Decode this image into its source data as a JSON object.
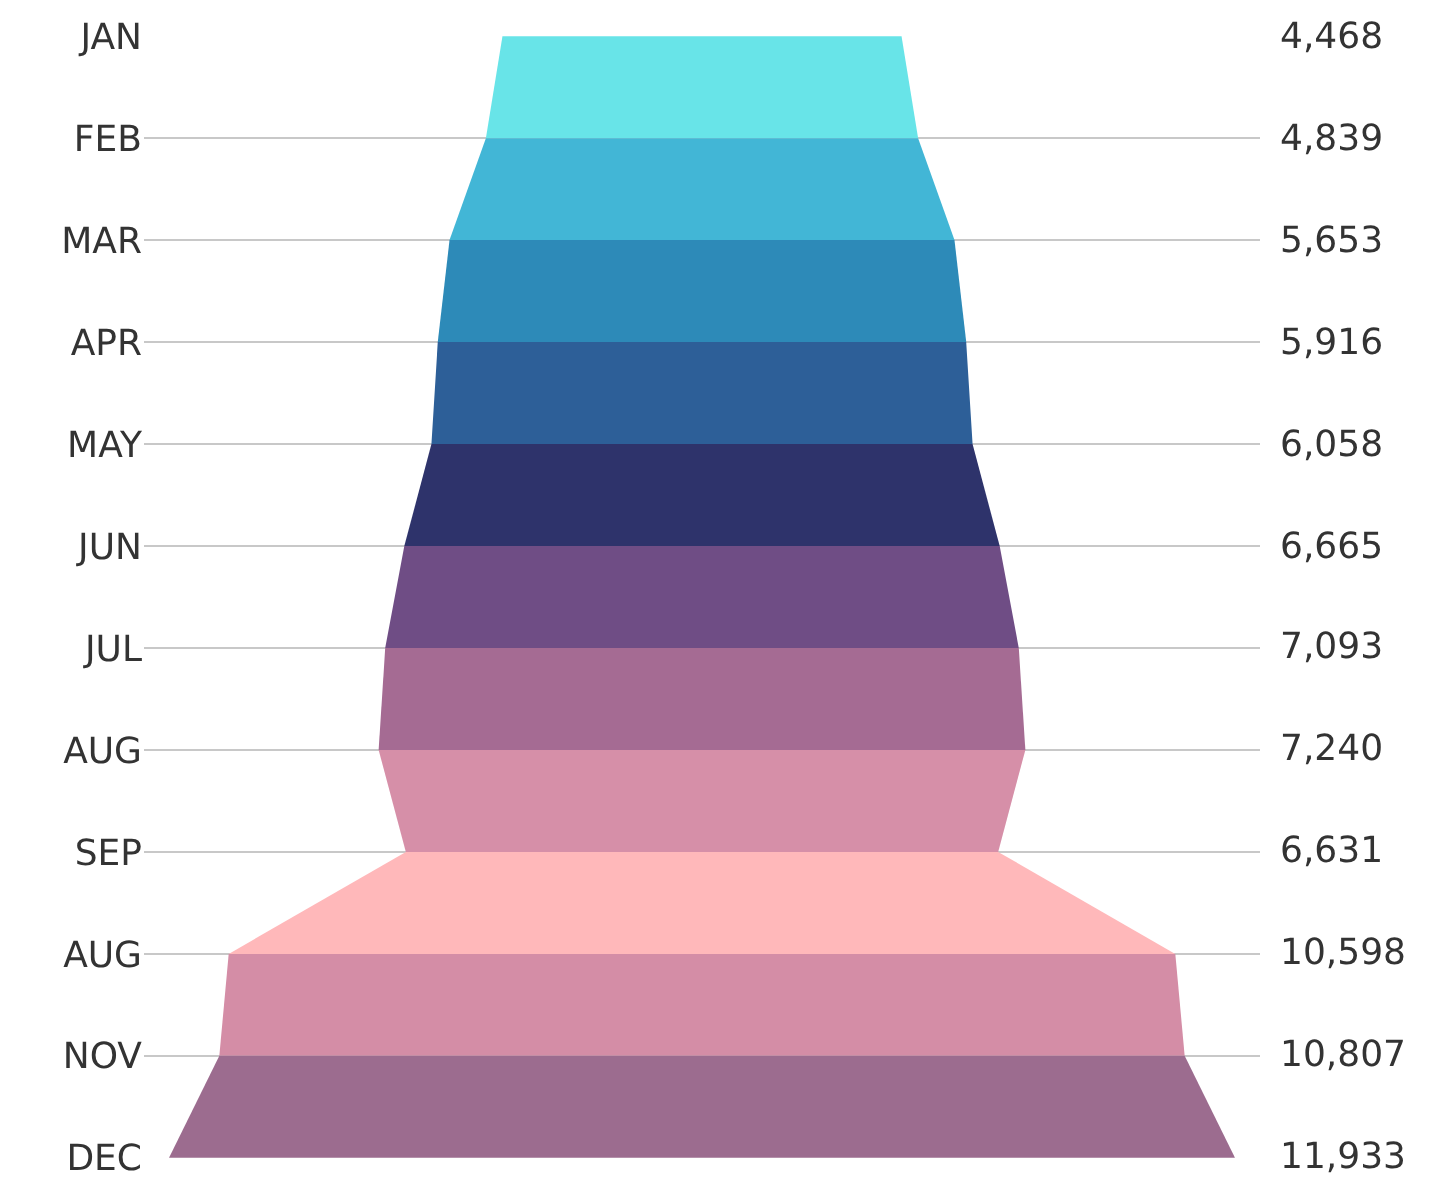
{
  "chart_data": {
    "type": "other",
    "categories": [
      "JAN",
      "FEB",
      "MAR",
      "APR",
      "MAY",
      "JUN",
      "JUL",
      "AUG",
      "SEP",
      "AUG",
      "NOV",
      "DEC"
    ],
    "values": [
      4468,
      4839,
      5653,
      5916,
      6058,
      6665,
      7093,
      7240,
      6631,
      10598,
      10807,
      11933
    ],
    "colors": [
      "#68e4e8",
      "#42b6d6",
      "#2d8ab8",
      "#2d5f98",
      "#2e336b",
      "#6f4d85",
      "#a56b93",
      "#d68fa8",
      "#ffb8ba",
      "#d48da6",
      "#9c6c8f",
      null
    ],
    "value_labels": [
      "4,468",
      "4,839",
      "5,653",
      "5,916",
      "6,058",
      "6,665",
      "7,093",
      "7,240",
      "6,631",
      "10,598",
      "10,807",
      "11,933"
    ]
  }
}
